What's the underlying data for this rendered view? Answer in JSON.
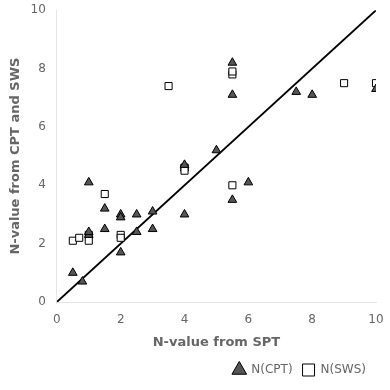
{
  "chart_data": {
    "type": "scatter",
    "xlabel": "N-value from SPT",
    "ylabel": "N-value from CPT and SWS",
    "xlim": [
      0,
      10
    ],
    "ylim": [
      0,
      10
    ],
    "xticks": [
      0,
      2,
      4,
      6,
      8,
      10
    ],
    "yticks": [
      0,
      2,
      4,
      6,
      8,
      10
    ],
    "grid": false,
    "legend": "lower right",
    "series": [
      {
        "type": "line",
        "color": "#000000",
        "x": [
          0,
          10
        ],
        "values": [
          0,
          10
        ]
      },
      {
        "name": "N(CPT)",
        "color": "#555555",
        "marker": "triangle",
        "x": [
          0.5,
          0.8,
          1.0,
          1.0,
          1.0,
          1.5,
          1.5,
          2.0,
          2.0,
          2.0,
          2.5,
          2.5,
          3.0,
          3.0,
          4.0,
          4.0,
          5.0,
          5.5,
          5.5,
          5.5,
          6.0,
          7.5,
          8.0,
          10.0
        ],
        "values": [
          1.0,
          0.7,
          2.3,
          2.4,
          4.1,
          3.2,
          2.5,
          3.0,
          2.9,
          1.7,
          3.0,
          2.4,
          3.1,
          2.5,
          4.7,
          3.0,
          5.2,
          8.2,
          7.1,
          3.5,
          4.1,
          7.2,
          7.1,
          7.3
        ]
      },
      {
        "name": "N(SWS)",
        "color": "#ffffff",
        "marker": "square",
        "x": [
          0.5,
          0.7,
          1.0,
          1.0,
          1.5,
          2.0,
          2.0,
          3.5,
          4.0,
          4.0,
          4.0,
          5.5,
          5.5,
          5.5,
          9.0,
          10.0
        ],
        "values": [
          2.1,
          2.2,
          2.3,
          2.1,
          3.7,
          2.3,
          2.2,
          7.4,
          4.6,
          4.6,
          4.5,
          7.8,
          7.9,
          4.0,
          7.5,
          7.5
        ]
      }
    ]
  }
}
